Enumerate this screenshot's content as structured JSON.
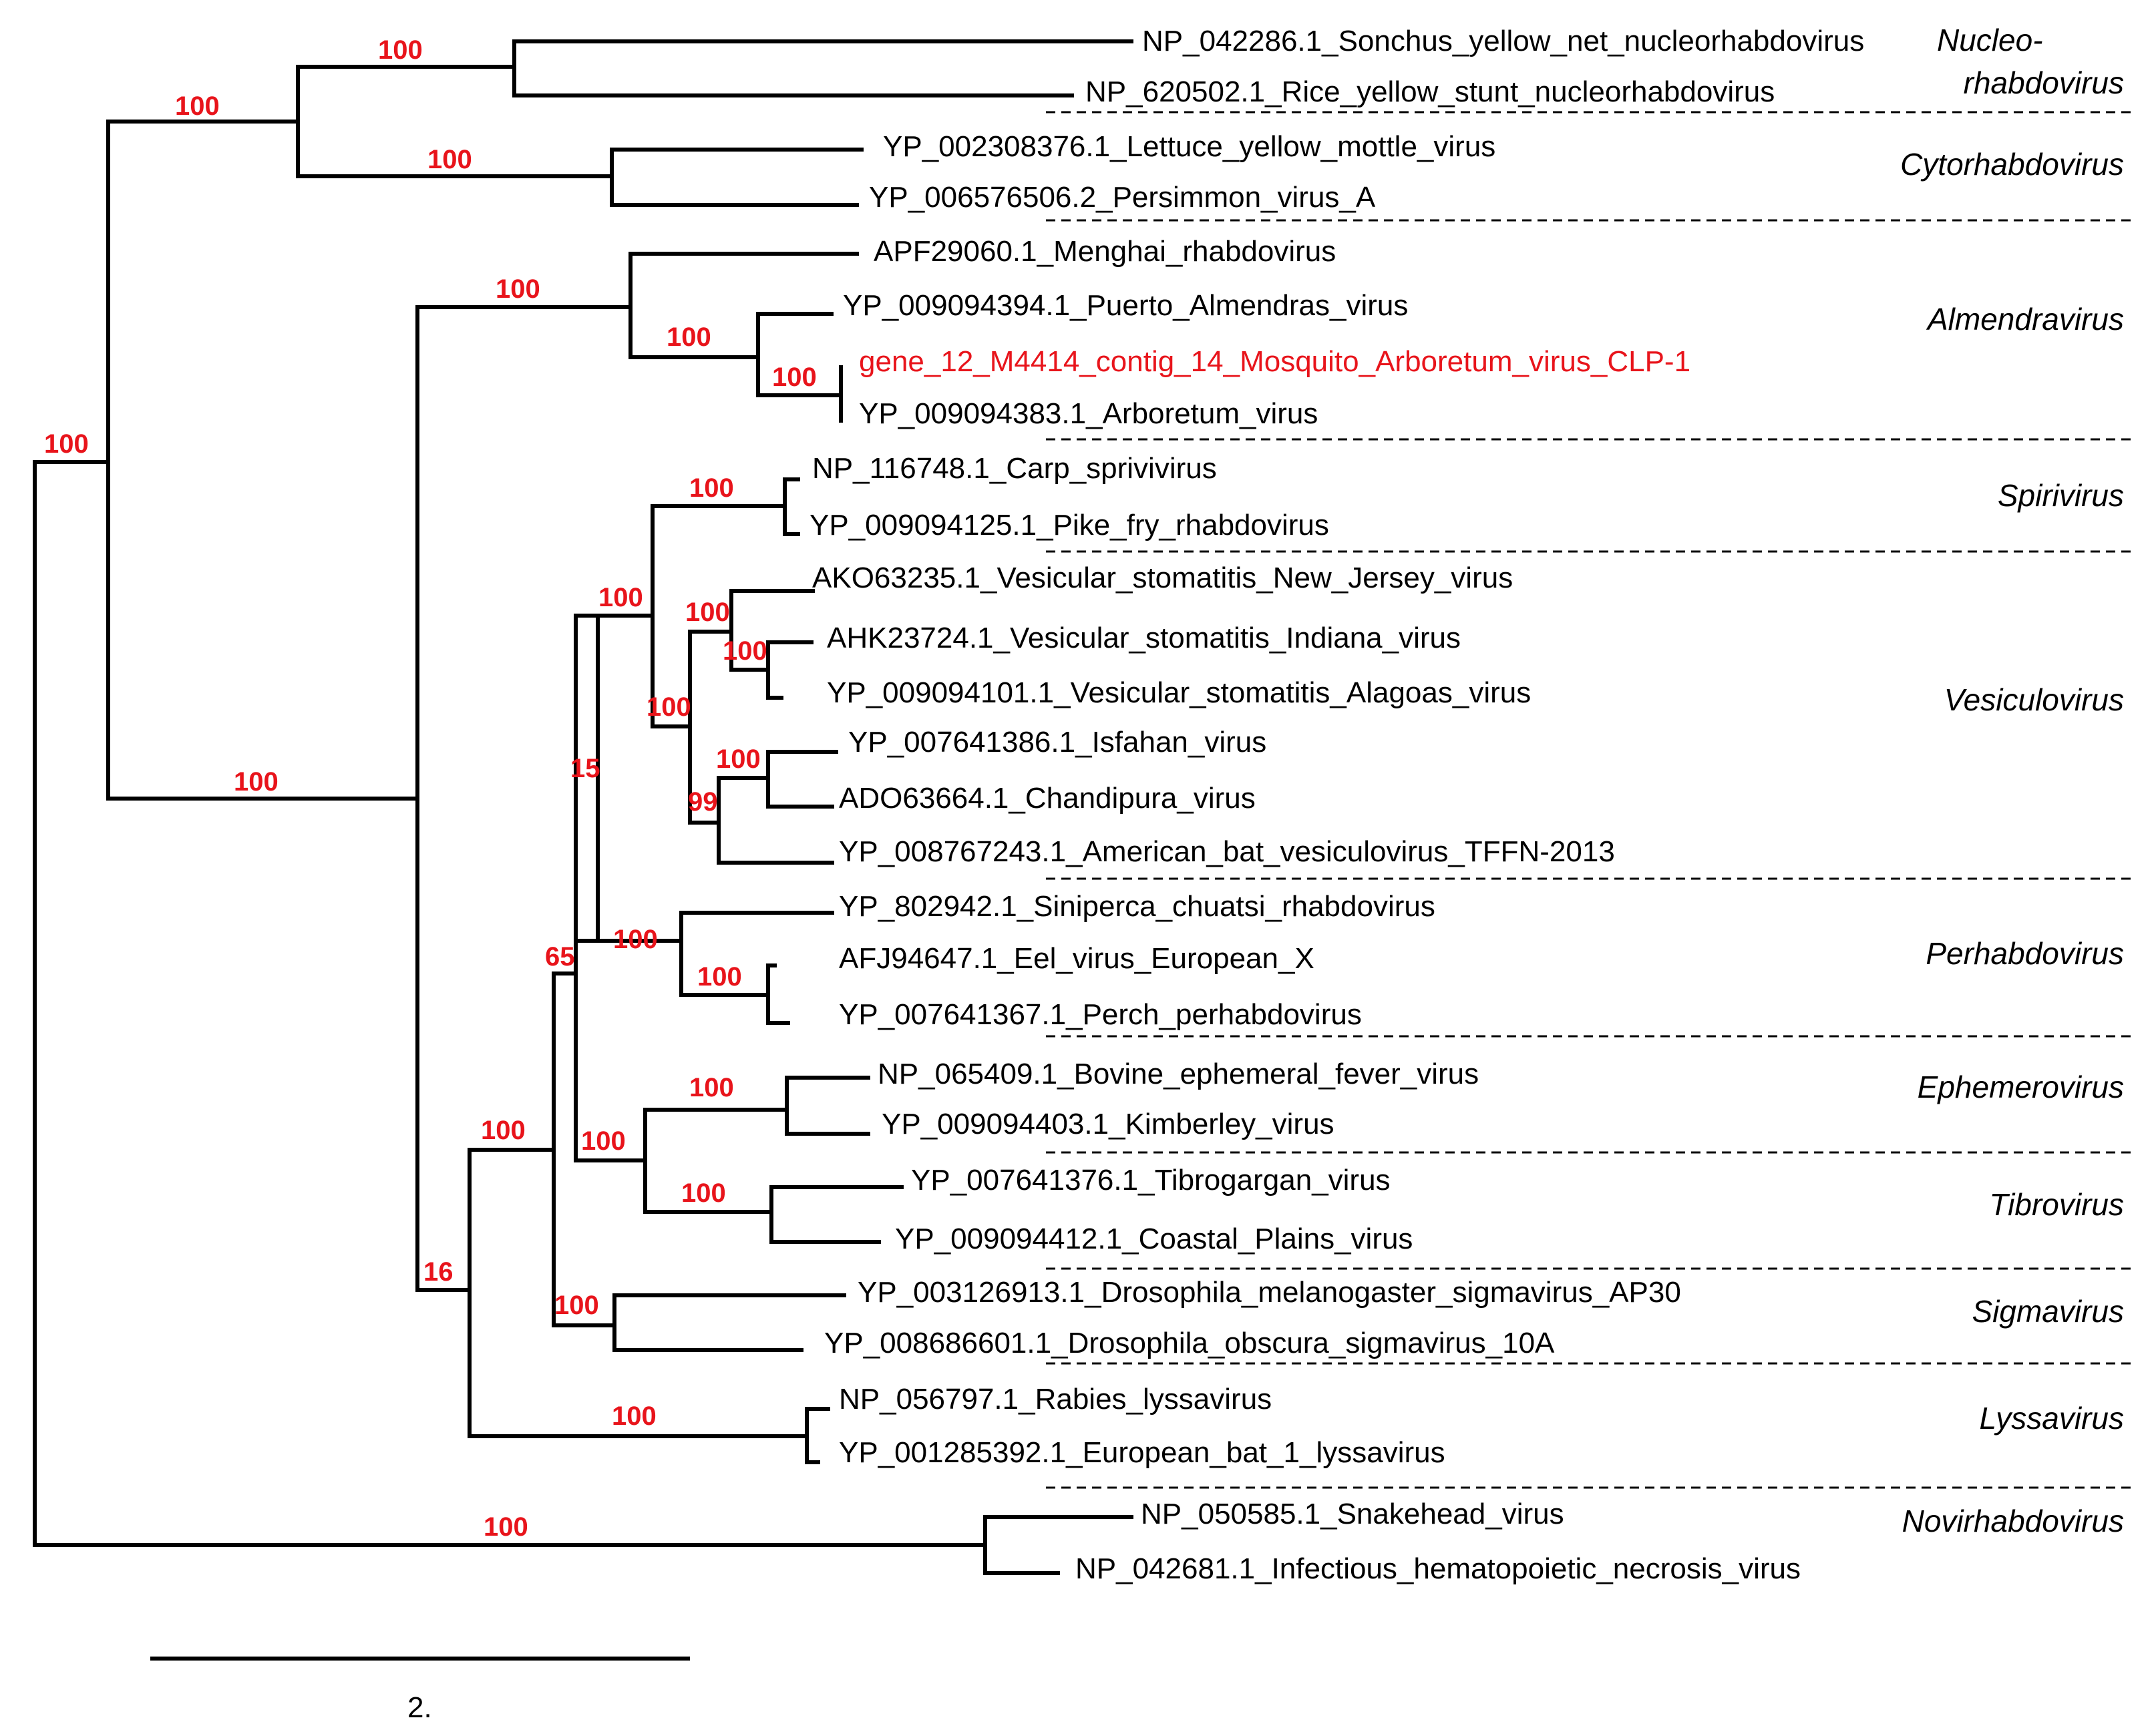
{
  "leaves": [
    {
      "id": "sonchus",
      "label": "NP_042286.1_Sonchus_yellow_net_nucleorhabdovirus"
    },
    {
      "id": "rice",
      "label": "NP_620502.1_Rice_yellow_stunt_nucleorhabdovirus"
    },
    {
      "id": "lettuce",
      "label": "YP_002308376.1_Lettuce_yellow_mottle_virus"
    },
    {
      "id": "persimmon",
      "label": "YP_006576506.2_Persimmon_virus_A"
    },
    {
      "id": "menghai",
      "label": "APF29060.1_Menghai_rhabdovirus"
    },
    {
      "id": "puerto",
      "label": "YP_009094394.1_Puerto_Almendras_virus"
    },
    {
      "id": "mosquito",
      "label": "gene_12_M4414_contig_14_Mosquito_Arboretum_virus_CLP-1",
      "highlight": true
    },
    {
      "id": "arboretum",
      "label": "YP_009094383.1_Arboretum_virus"
    },
    {
      "id": "carp",
      "label": "NP_116748.1_Carp_sprivivirus"
    },
    {
      "id": "pike",
      "label": "YP_009094125.1_Pike_fry_rhabdovirus"
    },
    {
      "id": "vsnj",
      "label": "AKO63235.1_Vesicular_stomatitis_New_Jersey_virus"
    },
    {
      "id": "vsin",
      "label": "AHK23724.1_Vesicular_stomatitis_Indiana_virus"
    },
    {
      "id": "vsal",
      "label": "YP_009094101.1_Vesicular_stomatitis_Alagoas_virus"
    },
    {
      "id": "isfahan",
      "label": "YP_007641386.1_Isfahan_virus"
    },
    {
      "id": "chandipura",
      "label": "ADO63664.1_Chandipura_virus"
    },
    {
      "id": "batves",
      "label": "YP_008767243.1_American_bat_vesiculovirus_TFFN-2013"
    },
    {
      "id": "siniperca",
      "label": "YP_802942.1_Siniperca_chuatsi_rhabdovirus"
    },
    {
      "id": "eel",
      "label": "AFJ94647.1_Eel_virus_European_X"
    },
    {
      "id": "perch",
      "label": "YP_007641367.1_Perch_perhabdovirus"
    },
    {
      "id": "bovine",
      "label": "NP_065409.1_Bovine_ephemeral_fever_virus"
    },
    {
      "id": "kimberley",
      "label": "YP_009094403.1_Kimberley_virus"
    },
    {
      "id": "tibrogargan",
      "label": "YP_007641376.1_Tibrogargan_virus"
    },
    {
      "id": "coastal",
      "label": "YP_009094412.1_Coastal_Plains_virus"
    },
    {
      "id": "dmel",
      "label": "YP_003126913.1_Drosophila_melanogaster_sigmavirus_AP30"
    },
    {
      "id": "dobs",
      "label": "YP_008686601.1_Drosophila_obscura_sigmavirus_10A"
    },
    {
      "id": "rabies",
      "label": "NP_056797.1_Rabies_lyssavirus"
    },
    {
      "id": "eblv",
      "label": "YP_001285392.1_European_bat_1_lyssavirus"
    },
    {
      "id": "snakehead",
      "label": "NP_050585.1_Snakehead_virus"
    },
    {
      "id": "ihnv",
      "label": "NP_042681.1_Infectious_hematopoietic_necrosis_virus"
    }
  ],
  "bootstrap": {
    "root": "100",
    "ingroup": "100",
    "plant": "100",
    "nucleo": "100",
    "cyto": "100",
    "animal": "100",
    "almendra": "100",
    "almendra_inner": "100",
    "arboretum_pair": "100",
    "node16": "16",
    "node65": "65",
    "node15": "15",
    "spiri_vesic": "100",
    "spiri": "100",
    "vesic": "100",
    "vsv": "100",
    "vsv_in_al": "100",
    "chandi_group": "99",
    "isfahan_chandi": "100",
    "perhabdo": "100",
    "perhabdo_inner": "100",
    "ephem_tibro": "100",
    "ephem": "100",
    "tibro": "100",
    "sigma": "100",
    "lyssa": "100",
    "novi": "100"
  },
  "genera": {
    "nucleo_line1": "Nucleo-",
    "nucleo_line2": "rhabdovirus",
    "cytorhabdovirus": "Cytorhabdovirus",
    "almendravirus": "Almendravirus",
    "spirivirus": "Spirivirus",
    "vesiculovirus": "Vesiculovirus",
    "perhabdovirus": "Perhabdovirus",
    "ephemerovirus": "Ephemerovirus",
    "tibrovirus": "Tibrovirus",
    "sigmavirus": "Sigmavirus",
    "lyssavirus": "Lyssavirus",
    "novirhabdovirus": "Novirhabdovirus"
  },
  "scale_bar": {
    "label": "2."
  },
  "colors": {
    "bootstrap": "#e8141b",
    "highlight": "#e8141b",
    "branch": "#000000"
  }
}
